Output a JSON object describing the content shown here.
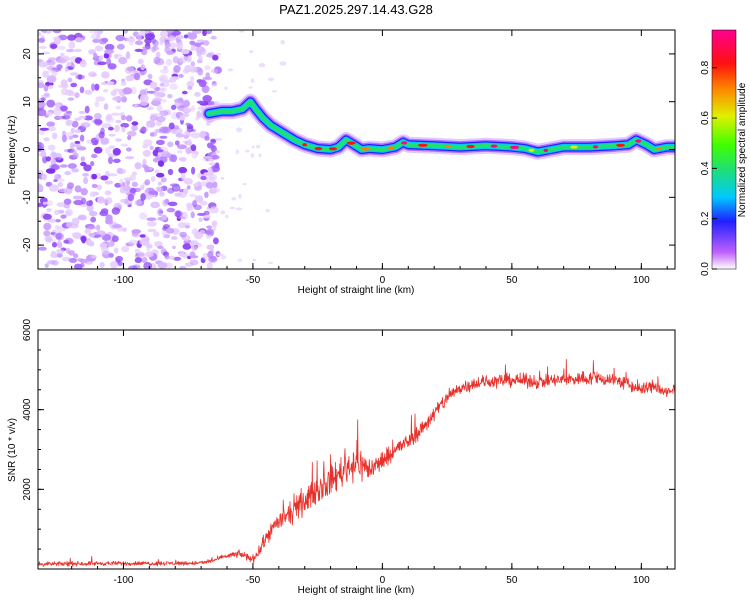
{
  "title": "PAZ1.2025.297.14.43.G28",
  "chart_data": [
    {
      "type": "heatmap",
      "title": "PAZ1.2025.297.14.43.G28",
      "xlabel": "Height of straight line (km)",
      "ylabel": "Frequency (Hz)",
      "xlim": [
        -133,
        113
      ],
      "ylim": [
        -25,
        25
      ],
      "xticks": [
        -100,
        -50,
        0,
        50,
        100
      ],
      "yticks": [
        -20,
        -10,
        0,
        10,
        20
      ],
      "xtick_labels": [
        "-100",
        "-50",
        "0",
        "50",
        "100"
      ],
      "ytick_labels": [
        "-20",
        "-10",
        "0",
        "10",
        "20"
      ],
      "noise_region_x": [
        -133,
        -65
      ],
      "ridge": {
        "x": [
          -67,
          -62,
          -58,
          -54,
          -51,
          -49,
          -46,
          -43,
          -40,
          -37,
          -34,
          -30,
          -25,
          -20,
          -17,
          -14,
          -11,
          -8,
          -5,
          0,
          5,
          8,
          10,
          20,
          30,
          40,
          50,
          55,
          60,
          65,
          70,
          80,
          90,
          95,
          98,
          102,
          105,
          110,
          113
        ],
        "freq": [
          7.5,
          8,
          8,
          8.5,
          10,
          8.5,
          6.5,
          5,
          4,
          3,
          2,
          1,
          0.2,
          0,
          0.5,
          2,
          1,
          0,
          0.2,
          0,
          0.5,
          1.5,
          1,
          0.8,
          0.5,
          0.8,
          0.5,
          0.2,
          -0.5,
          0,
          0.5,
          0.5,
          0.8,
          1,
          2,
          1,
          0,
          0.5,
          0.5
        ]
      },
      "colorbar": {
        "label": "Normalized spectral amplitude",
        "range": [
          0.0,
          0.95
        ],
        "ticks": [
          0.0,
          0.2,
          0.4,
          0.6,
          0.8
        ],
        "tick_labels": [
          "0.0",
          "0.2",
          "0.4",
          "0.6",
          "0.8"
        ]
      }
    },
    {
      "type": "line",
      "xlabel": "Height of straight line (km)",
      "ylabel": "SNR (10 * v/v)",
      "xlim": [
        -133,
        113
      ],
      "ylim": [
        0,
        6000
      ],
      "xticks": [
        -100,
        -50,
        0,
        50,
        100
      ],
      "yticks": [
        2000,
        4000,
        6000
      ],
      "xtick_labels": [
        "-100",
        "-50",
        "0",
        "50",
        "100"
      ],
      "ytick_labels": [
        "2000",
        "4000",
        "6000"
      ],
      "series": [
        {
          "name": "SNR",
          "color": "#e8302a",
          "x": [
            -133,
            -110,
            -90,
            -70,
            -65,
            -60,
            -55,
            -52,
            -50,
            -47,
            -44,
            -40,
            -35,
            -30,
            -25,
            -20,
            -15,
            -10,
            -5,
            0,
            5,
            10,
            15,
            20,
            25,
            30,
            35,
            40,
            50,
            60,
            70,
            80,
            90,
            100,
            105,
            110,
            113
          ],
          "values": [
            120,
            140,
            140,
            150,
            220,
            330,
            380,
            300,
            250,
            500,
            900,
            1200,
            1400,
            1700,
            2000,
            2200,
            2500,
            2700,
            2500,
            2700,
            3000,
            3200,
            3500,
            3900,
            4300,
            4550,
            4650,
            4700,
            4750,
            4700,
            4750,
            4800,
            4750,
            4500,
            4600,
            4400,
            4500
          ],
          "noise": [
            80,
            80,
            80,
            80,
            80,
            100,
            130,
            150,
            150,
            200,
            300,
            350,
            400,
            450,
            500,
            550,
            600,
            700,
            450,
            350,
            300,
            300,
            300,
            300,
            280,
            250,
            250,
            250,
            250,
            250,
            250,
            270,
            270,
            250,
            250,
            250,
            250
          ]
        }
      ]
    }
  ]
}
